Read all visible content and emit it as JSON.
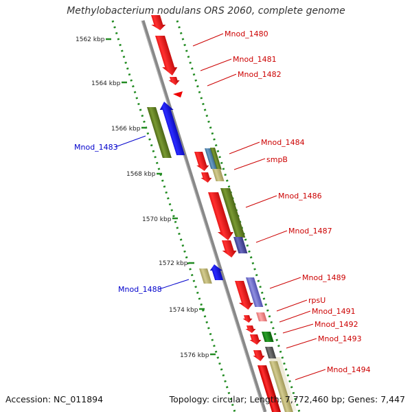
{
  "title": "Methylobacterium nodulans ORS 2060, complete genome",
  "footer": {
    "accession": "Accession: NC_011894",
    "stats": "Topology: circular; Length: 7,772,460 bp; Genes: 7,447"
  },
  "ruler_ticks": [
    "1562 kbp",
    "1564 kbp",
    "1566 kbp",
    "1568 kbp",
    "1570 kbp",
    "1572 kbp",
    "1574 kbp",
    "1576 kbp"
  ],
  "gene_labels_forward": [
    "Mnod_1480",
    "Mnod_1481",
    "Mnod_1482",
    "Mnod_1484",
    "smpB",
    "Mnod_1486",
    "Mnod_1487",
    "Mnod_1489",
    "rpsU",
    "Mnod_1491",
    "Mnod_1492",
    "Mnod_1493",
    "Mnod_1494"
  ],
  "gene_labels_reverse": [
    "Mnod_1483",
    "Mnod_1488"
  ],
  "colors": {
    "red_gene": "#ff0000",
    "blue_gene": "#0000ff",
    "olive_gene": "#6b8e23",
    "khaki_gene": "#c8c080",
    "dotted_track": "#228b22",
    "backbone": "#808080",
    "label_forward": "#cc0000",
    "label_reverse": "#0000cc"
  }
}
